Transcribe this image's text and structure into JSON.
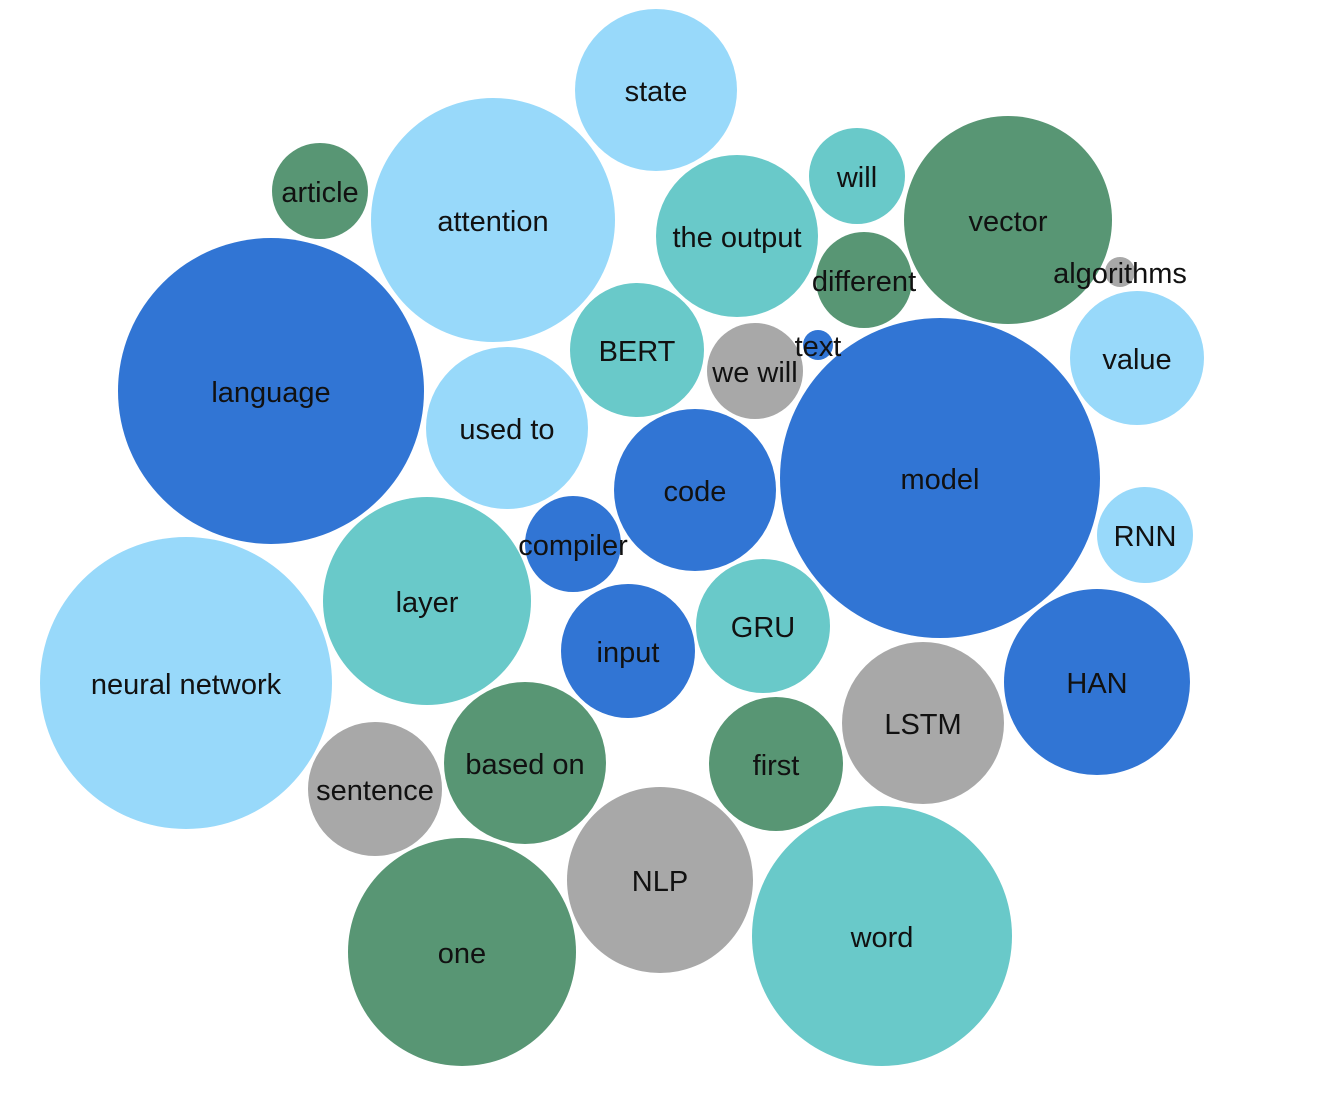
{
  "palette": {
    "light-blue": "#98d9fa",
    "teal": "#69c9c9",
    "green": "#589674",
    "blue": "#3175d4",
    "gray": "#a8a8a8"
  },
  "chart_data": {
    "type": "bubble",
    "title": "",
    "items": [
      {
        "label": "model",
        "size": 160,
        "color": "blue"
      },
      {
        "label": "neural network",
        "size": 146,
        "color": "light-blue"
      },
      {
        "label": "language",
        "size": 153,
        "color": "blue"
      },
      {
        "label": "word",
        "size": 130,
        "color": "teal"
      },
      {
        "label": "attention",
        "size": 122,
        "color": "light-blue"
      },
      {
        "label": "one",
        "size": 114,
        "color": "green"
      },
      {
        "label": "vector",
        "size": 104,
        "color": "green"
      },
      {
        "label": "layer",
        "size": 104,
        "color": "teal"
      },
      {
        "label": "NLP",
        "size": 93,
        "color": "gray"
      },
      {
        "label": "HAN",
        "size": 93,
        "color": "blue"
      },
      {
        "label": "the output",
        "size": 81,
        "color": "teal"
      },
      {
        "label": "code",
        "size": 81,
        "color": "blue"
      },
      {
        "label": "state",
        "size": 81,
        "color": "light-blue"
      },
      {
        "label": "LSTM",
        "size": 81,
        "color": "gray"
      },
      {
        "label": "used to",
        "size": 81,
        "color": "light-blue"
      },
      {
        "label": "based on",
        "size": 81,
        "color": "green"
      },
      {
        "label": "value",
        "size": 67,
        "color": "light-blue"
      },
      {
        "label": "first",
        "size": 67,
        "color": "green"
      },
      {
        "label": "sentence",
        "size": 67,
        "color": "gray"
      },
      {
        "label": "input",
        "size": 67,
        "color": "blue"
      },
      {
        "label": "GRU",
        "size": 67,
        "color": "teal"
      },
      {
        "label": "BERT",
        "size": 67,
        "color": "teal"
      },
      {
        "label": "different",
        "size": 48,
        "color": "green"
      },
      {
        "label": "we will",
        "size": 48,
        "color": "gray"
      },
      {
        "label": "article",
        "size": 48,
        "color": "green"
      },
      {
        "label": "compiler",
        "size": 48,
        "color": "blue"
      },
      {
        "label": "will",
        "size": 48,
        "color": "teal"
      },
      {
        "label": "RNN",
        "size": 48,
        "color": "light-blue"
      },
      {
        "label": "text",
        "size": 15,
        "color": "blue"
      },
      {
        "label": "algorithms",
        "size": 15,
        "color": "gray"
      }
    ]
  }
}
